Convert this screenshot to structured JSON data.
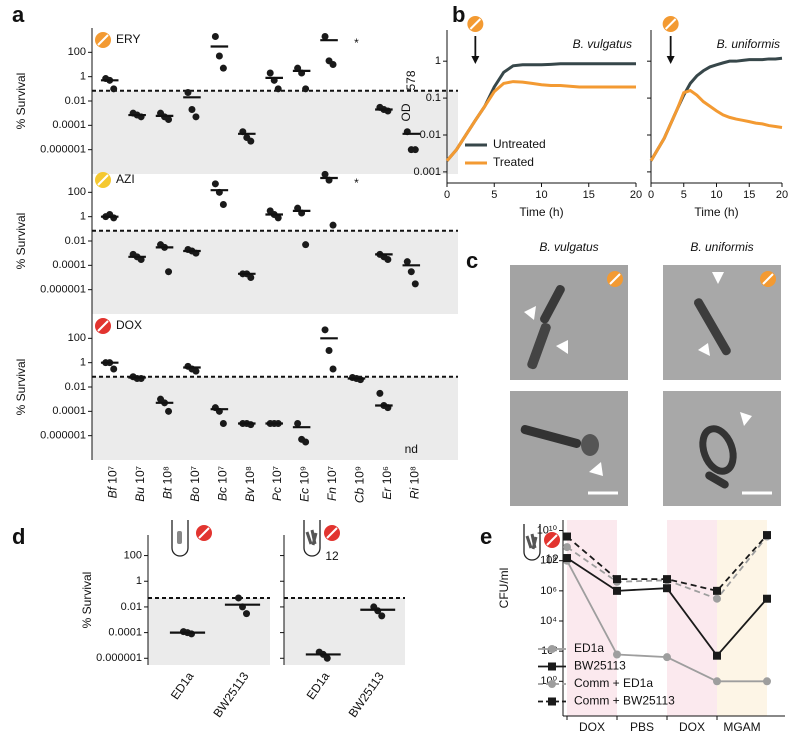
{
  "panel_labels": [
    "a",
    "b",
    "c",
    "d",
    "e"
  ],
  "images": {
    "titles": [
      "B. vulgatus",
      "B. uniformis"
    ]
  },
  "chart_data": [
    {
      "type": "strip",
      "label": "ERY",
      "icon_color": "#f39a32",
      "ylabel": "% Survival",
      "ylim": [
        1e-08,
        10000
      ],
      "yticks": [
        100,
        1,
        0.01,
        0.0001,
        1e-06
      ],
      "threshold": 0.07,
      "values": [
        [
          0.7,
          0.5,
          0.1
        ],
        [
          0.001,
          0.0007,
          0.0005
        ],
        [
          0.001,
          0.0005,
          0.0003
        ],
        [
          0.05,
          0.002,
          0.0005
        ],
        [
          2000,
          50,
          5
        ],
        [
          3e-05,
          1e-05,
          5e-06
        ],
        [
          2,
          0.5,
          0.1
        ],
        [
          5,
          2,
          0.1
        ],
        [
          2000,
          20,
          10
        ],
        null,
        [
          0.003,
          0.002,
          0.0015
        ],
        [
          3e-05,
          1e-06,
          1e-06
        ]
      ],
      "means": [
        0.5,
        0.0007,
        0.0006,
        0.02,
        300,
        2e-05,
        0.8,
        3,
        1000,
        null,
        0.002,
        2e-05
      ],
      "annotation": {
        "text": "*",
        "index": 9
      }
    },
    {
      "type": "strip",
      "label": "AZI",
      "icon_color": "#f5c830",
      "ylabel": "% Survival",
      "ylim": [
        1e-08,
        10000
      ],
      "yticks": [
        100,
        1,
        0.01,
        0.0001,
        1e-06
      ],
      "threshold": 0.07,
      "values": [
        [
          1,
          1.5,
          0.8
        ],
        [
          0.0008,
          0.0005,
          0.0003
        ],
        [
          0.005,
          0.003,
          3e-05
        ],
        [
          0.002,
          0.0015,
          0.001
        ],
        [
          500,
          100,
          10
        ],
        [
          2e-05,
          2e-05,
          1e-05
        ],
        [
          3,
          1.5,
          0.8
        ],
        [
          5,
          2,
          0.005
        ],
        [
          3000,
          1000,
          0.2
        ],
        null,
        [
          0.0008,
          0.0005,
          0.0003
        ],
        [
          0.0002,
          3e-05,
          3e-06
        ]
      ],
      "means": [
        1,
        0.0005,
        0.003,
        0.0015,
        150,
        2e-05,
        1.5,
        3,
        1500,
        null,
        0.0008,
        0.0001
      ],
      "annotation": {
        "text": "*",
        "index": 9
      }
    },
    {
      "type": "strip",
      "label": "DOX",
      "icon_color": "#e2342f",
      "ylabel": "% Survival",
      "ylim": [
        1e-08,
        10000
      ],
      "yticks": [
        100,
        1,
        0.01,
        0.0001,
        1e-06
      ],
      "threshold": 0.07,
      "categories": [
        "Bf 10⁷",
        "Bu 10⁷",
        "Bt 10⁸",
        "Bo 10⁷",
        "Bc 10⁷",
        "Bv 10⁸",
        "Pc 10⁷",
        "Ec 10⁹",
        "Fn 10⁷",
        "Cb 10⁹",
        "Er 10⁶",
        "Ri 10⁸"
      ],
      "values": [
        [
          1,
          1,
          0.3
        ],
        [
          0.07,
          0.05,
          0.05
        ],
        [
          0.001,
          0.0005,
          0.0001
        ],
        [
          0.5,
          0.3,
          0.2
        ],
        [
          0.0002,
          0.0001,
          1e-05
        ],
        [
          1e-05,
          1e-05,
          8e-06
        ],
        [
          1e-05,
          1e-05,
          1e-05
        ],
        [
          1e-05,
          5e-07,
          3e-07
        ],
        [
          500,
          10,
          0.3
        ],
        [
          0.06,
          0.05,
          0.04
        ],
        [
          0.003,
          0.0003,
          0.0002
        ],
        null
      ],
      "means": [
        1,
        0.06,
        0.0005,
        0.4,
        0.00015,
        1e-05,
        1e-05,
        5e-06,
        100,
        0.05,
        0.0003,
        null
      ],
      "annotation": {
        "text": "nd",
        "index": 11
      }
    },
    {
      "type": "line",
      "title": "B. vulgatus",
      "xlabel": "Time (h)",
      "ylabel": "OD",
      "ylabel_sub": "578",
      "icon_color": "#f39a32",
      "arrow_x": 3,
      "log_y": true,
      "xlim": [
        0,
        20
      ],
      "xticks": [
        0,
        5,
        10,
        15,
        20
      ],
      "ylim": [
        0.0005,
        7
      ],
      "yticks": [
        0.001,
        0.01,
        0.1,
        1
      ],
      "x": [
        0,
        1,
        2,
        3,
        4,
        5,
        6,
        7,
        8,
        9,
        10,
        11,
        12,
        13,
        14,
        15,
        16,
        17,
        18,
        19,
        20
      ],
      "series": [
        {
          "name": "Untreated",
          "color": "#37474a",
          "values": [
            0.002,
            0.004,
            0.01,
            0.025,
            0.06,
            0.2,
            0.5,
            0.75,
            0.8,
            0.8,
            0.8,
            0.82,
            0.85,
            0.85,
            0.85,
            0.85,
            0.85,
            0.85,
            0.85,
            0.85,
            0.85
          ]
        },
        {
          "name": "Treated",
          "color": "#f39a32",
          "values": [
            0.002,
            0.004,
            0.01,
            0.025,
            0.06,
            0.15,
            0.25,
            0.28,
            0.27,
            0.25,
            0.23,
            0.22,
            0.22,
            0.21,
            0.2,
            0.2,
            0.2,
            0.2,
            0.2,
            0.2,
            0.2
          ]
        }
      ]
    },
    {
      "type": "line",
      "title": "B. uniformis",
      "xlabel": "Time (h)",
      "icon_color": "#f39a32",
      "arrow_x": 3,
      "log_y": true,
      "ytick_labels": false,
      "xlim": [
        0,
        20
      ],
      "xticks": [
        0,
        5,
        10,
        15,
        20
      ],
      "ylim": [
        0.0005,
        7
      ],
      "yticks": [
        0.001,
        0.01,
        0.1,
        1
      ],
      "x": [
        0,
        1,
        2,
        3,
        4,
        5,
        6,
        7,
        8,
        9,
        10,
        11,
        12,
        13,
        14,
        15,
        16,
        17,
        18,
        19,
        20
      ],
      "series": [
        {
          "color": "#37474a",
          "values": [
            0.002,
            0.004,
            0.008,
            0.02,
            0.05,
            0.12,
            0.25,
            0.4,
            0.55,
            0.7,
            0.8,
            0.9,
            1,
            1,
            1.05,
            1.1,
            1.1,
            1.1,
            1.15,
            1.15,
            1.2
          ]
        },
        {
          "color": "#f39a32",
          "values": [
            0.002,
            0.004,
            0.008,
            0.02,
            0.05,
            0.14,
            0.16,
            0.12,
            0.08,
            0.06,
            0.045,
            0.035,
            0.03,
            0.027,
            0.025,
            0.023,
            0.021,
            0.02,
            0.018,
            0.017,
            0.016
          ]
        }
      ]
    },
    {
      "type": "strip",
      "icon_color": "#e2342f",
      "ylabel": "% Survival",
      "ylim": [
        3e-07,
        4000
      ],
      "yticks": [
        100,
        1,
        0.01,
        0.0001,
        1e-06
      ],
      "threshold": 0.05,
      "categories": [
        "ED1a",
        "BW25113"
      ],
      "values": [
        [
          0.00012,
          0.0001,
          8e-05
        ],
        [
          0.05,
          0.01,
          0.003
        ]
      ],
      "means": [
        0.0001,
        0.015
      ]
    },
    {
      "type": "strip",
      "label": "12",
      "icon_color": "#e2342f",
      "ytick_labels": false,
      "ylim": [
        3e-07,
        4000
      ],
      "yticks": [
        100,
        1,
        0.01,
        0.0001,
        1e-06
      ],
      "threshold": 0.05,
      "categories": [
        "ED1a",
        "BW25113"
      ],
      "values": [
        [
          3e-06,
          2e-06,
          1e-06
        ],
        [
          0.01,
          0.005,
          0.002
        ]
      ],
      "means": [
        2e-06,
        0.006
      ]
    },
    {
      "type": "timeline",
      "ylabel": "CFU/ml",
      "label": "12",
      "icon_color": "#e2342f",
      "log_y": true,
      "xlim": [
        -0.08,
        4.36
      ],
      "ylim": [
        0.005,
        50000000000
      ],
      "yticks": [
        {
          "value": 1,
          "label": "10⁰"
        },
        {
          "value": 100,
          "label": "10²"
        },
        {
          "value": 10000,
          "label": "10⁴"
        },
        {
          "value": 1000000,
          "label": "10⁶"
        },
        {
          "value": 100000000,
          "label": "10⁸"
        },
        {
          "value": 10000000000,
          "label": "10¹⁰"
        }
      ],
      "phases": [
        {
          "label": "DOX",
          "start": 0,
          "end": 1,
          "color": "#fbe9ee"
        },
        {
          "label": "PBS",
          "start": 1,
          "end": 2
        },
        {
          "label": "DOX",
          "start": 2,
          "end": 3,
          "color": "#fbe9ee"
        },
        {
          "label": "MGAM",
          "start": 3,
          "end": 4,
          "color": "#fdf5e6"
        }
      ],
      "x": [
        0,
        1,
        2,
        3,
        4
      ],
      "series": [
        {
          "name": "ED1a",
          "color": "#9e9e9e",
          "marker": "circle",
          "dashed": false,
          "values": [
            100000000,
            60,
            40,
            1,
            1
          ]
        },
        {
          "name": "BW25113",
          "color": "#1a1a1a",
          "marker": "square",
          "dashed": false,
          "values": [
            150000000,
            1000000,
            1500000,
            50,
            300000
          ]
        },
        {
          "name": "Comm + ED1a",
          "color": "#9e9e9e",
          "marker": "circle",
          "dashed": true,
          "values": [
            800000000,
            4000000,
            5000000,
            300000,
            4000000000
          ]
        },
        {
          "name": "Comm + BW25113",
          "color": "#1a1a1a",
          "marker": "square",
          "dashed": true,
          "values": [
            4000000000,
            6000000,
            6000000,
            1000000,
            5000000000
          ]
        }
      ]
    }
  ]
}
